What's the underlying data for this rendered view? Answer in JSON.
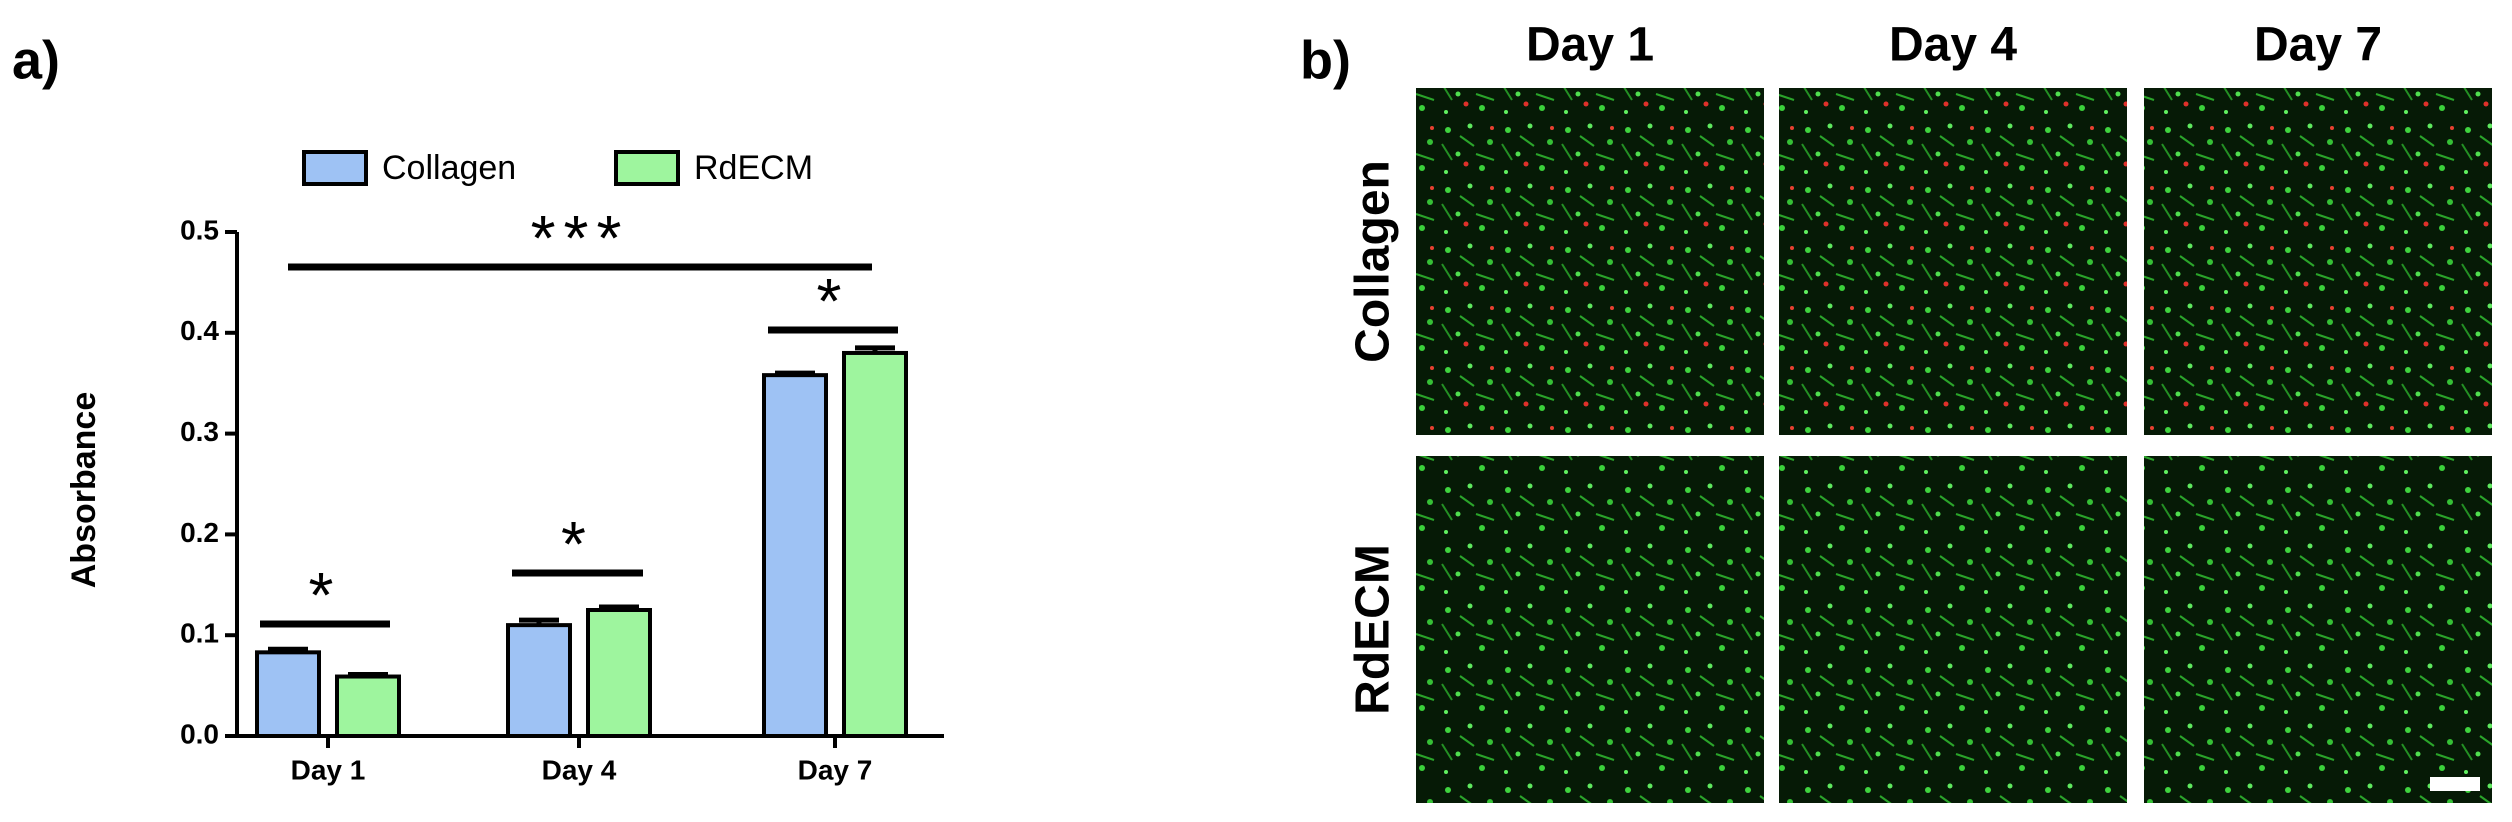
{
  "panel_labels": [
    "a)",
    "b)"
  ],
  "chart_data": {
    "type": "bar",
    "y_label": "Absorbance",
    "categories": [
      "Day 1",
      "Day 4",
      "Day 7"
    ],
    "series": [
      {
        "name": "Collagen",
        "color": "#9ec2f4",
        "values": [
          0.083,
          0.11,
          0.358
        ],
        "errors": [
          0.003,
          0.005,
          0.002
        ]
      },
      {
        "name": "RdECM",
        "color": "#9ef59e",
        "values": [
          0.059,
          0.125,
          0.38
        ],
        "errors": [
          0.002,
          0.003,
          0.005
        ]
      }
    ],
    "ylim": [
      0,
      0.5
    ],
    "yticks": [
      {
        "value": 0,
        "label": "0.0"
      },
      0.1,
      0.2,
      0.3,
      0.4,
      0.5
    ],
    "annotations": [
      {
        "text": "***"
      },
      {
        "text": "*"
      },
      {
        "text": "*"
      },
      {
        "text": "*"
      }
    ],
    "legend": "top"
  },
  "image_grid": {
    "columns": [
      "Day 1",
      "Day 4",
      "Day 7"
    ],
    "rows": [
      "Collagen",
      "RdECM"
    ]
  }
}
